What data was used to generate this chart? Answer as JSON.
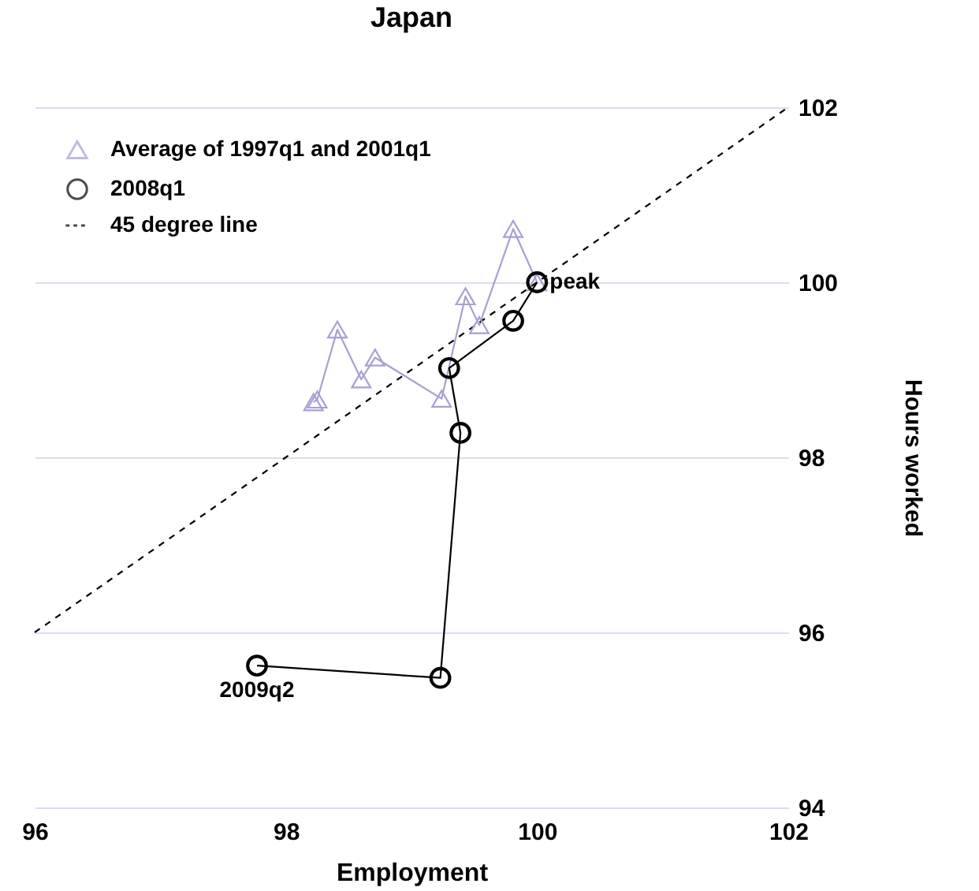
{
  "chart_data": {
    "type": "line",
    "title": "Japan",
    "xlabel": "Employment",
    "ylabel": "Hours worked",
    "xlim": [
      96,
      102
    ],
    "xticks": [
      96,
      98,
      100,
      102
    ],
    "ylim": [
      94,
      102
    ],
    "yticks": [
      94,
      96,
      98,
      100,
      102
    ],
    "grid": "y",
    "legend": "top left",
    "series": [
      {
        "name": "Average of 1997q1 and 2001q1",
        "color": "#a99fd2",
        "marker": "triangle",
        "line_style": "solid",
        "x": [
          100,
          99.81,
          99.54,
          99.43,
          99.24,
          98.71,
          98.6,
          98.41,
          98.25,
          98.22
        ],
        "values": [
          100,
          100.61,
          99.51,
          99.84,
          98.67,
          99.14,
          98.89,
          99.46,
          98.66,
          98.63
        ]
      },
      {
        "name": "2008q1",
        "color": "#000000",
        "marker": "circle",
        "line_style": "solid",
        "x": [
          100,
          99.81,
          99.3,
          99.39,
          99.23,
          97.77
        ],
        "values": [
          100,
          99.56,
          99.02,
          98.28,
          95.48,
          95.62
        ]
      },
      {
        "name": "45 degree line",
        "color": "#000000",
        "marker": "none",
        "line_style": "dashed",
        "x": [
          96,
          102
        ],
        "values": [
          96,
          102
        ]
      }
    ],
    "annotations": [
      {
        "text": "peak",
        "x": 100,
        "y": 100
      },
      {
        "text": "2009q2",
        "x": 97.77,
        "y": 95.62
      }
    ]
  }
}
